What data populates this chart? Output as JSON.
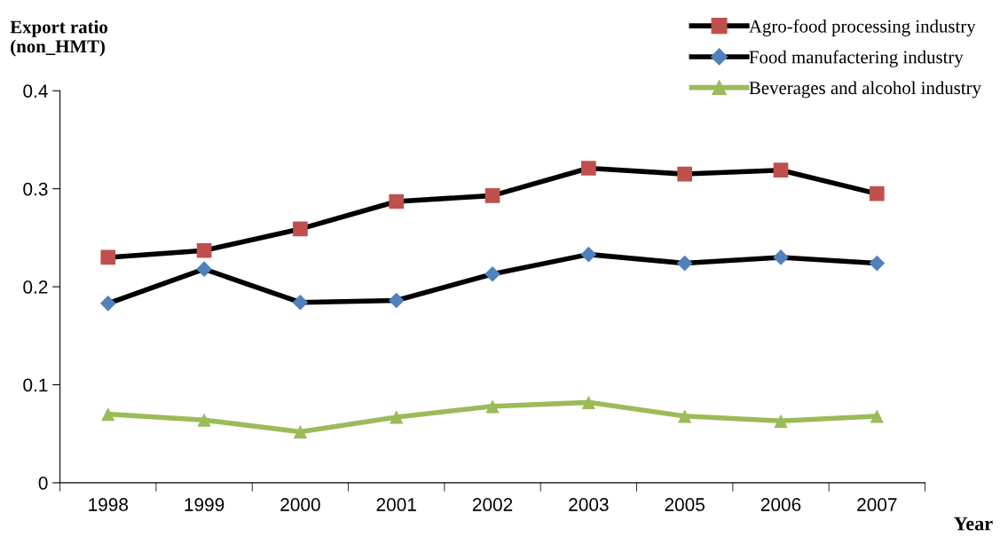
{
  "chart_data": {
    "type": "line",
    "ylabel": "Export ratio\n(non_HMT)",
    "xlabel": "Year",
    "categories": [
      "1998",
      "1999",
      "2000",
      "2001",
      "2002",
      "2003",
      "2005",
      "2006",
      "2007"
    ],
    "series": [
      {
        "name": "Agro-food processing industry",
        "color": "#000000",
        "colors": [
          "#c0504d",
          "#c0504d",
          "#c0504d",
          "#c0504d",
          "#c0504d",
          "#c0504d",
          "#c0504d",
          "#c0504d",
          "#c0504d"
        ],
        "marker": "square",
        "values": [
          0.23,
          0.237,
          0.259,
          0.287,
          0.293,
          0.321,
          0.315,
          0.319,
          0.295
        ]
      },
      {
        "name": "Food manufactering industry",
        "color": "#000000",
        "colors": [
          "#4f81bd",
          "#4f81bd",
          "#4f81bd",
          "#4f81bd",
          "#4f81bd",
          "#4f81bd",
          "#4f81bd",
          "#4f81bd",
          "#4f81bd"
        ],
        "marker": "diamond",
        "values": [
          0.183,
          0.218,
          0.184,
          0.186,
          0.213,
          0.233,
          0.224,
          0.23,
          0.224
        ]
      },
      {
        "name": "Beverages and alcohol industry",
        "color": "#9bbb59",
        "marker": "triangle",
        "values": [
          0.07,
          0.064,
          0.052,
          0.067,
          0.078,
          0.082,
          0.068,
          0.063,
          0.068
        ]
      }
    ],
    "ylim": [
      0,
      0.4
    ],
    "yticks": [
      {
        "value": 0,
        "label": "0"
      },
      0.1,
      0.2,
      0.3,
      0.4
    ],
    "grid": false,
    "legend": "top right"
  }
}
